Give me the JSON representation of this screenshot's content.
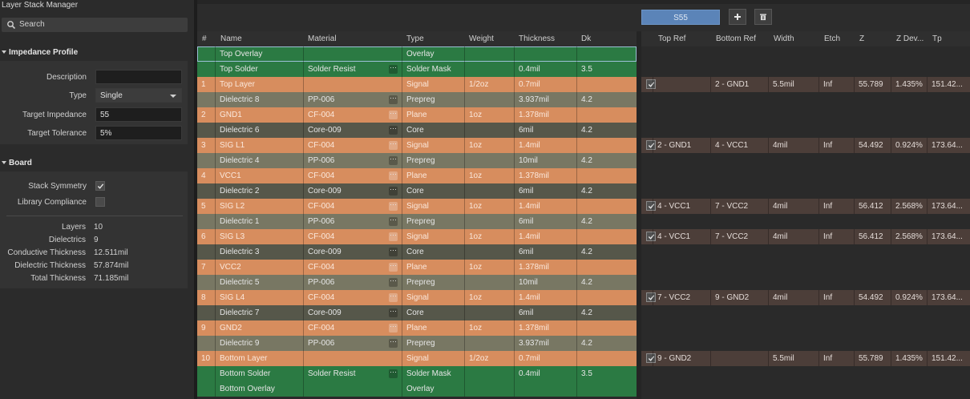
{
  "app": {
    "title": "Layer Stack Manager"
  },
  "search": {
    "placeholder": "Search"
  },
  "impedance_profile": {
    "header": "Impedance Profile",
    "description_label": "Description",
    "description_value": "",
    "type_label": "Type",
    "type_value": "Single",
    "target_impedance_label": "Target Impedance",
    "target_impedance_value": "55",
    "target_tolerance_label": "Target Tolerance",
    "target_tolerance_value": "5%"
  },
  "board": {
    "header": "Board",
    "stack_symmetry_label": "Stack Symmetry",
    "stack_symmetry_checked": true,
    "library_compliance_label": "Library Compliance",
    "library_compliance_checked": false,
    "stats": [
      {
        "label": "Layers",
        "value": "10"
      },
      {
        "label": "Dielectrics",
        "value": "9"
      },
      {
        "label": "Conductive Thickness",
        "value": "12.511mil"
      },
      {
        "label": "Dielectric Thickness",
        "value": "57.874mil"
      },
      {
        "label": "Total Thickness",
        "value": "71.185mil"
      }
    ]
  },
  "toolbar": {
    "impedance_tab": "S55",
    "add_icon": "plus-icon",
    "delete_icon": "trash-icon"
  },
  "colors": {
    "overlay": "#2b7a43",
    "solder": "#2b7a43",
    "signal": "#d78d5e",
    "plane": "#d78d5e",
    "prepreg": "#787763",
    "core": "#56574a",
    "impedance_row": "#4c3e39",
    "accent": "#5b84b8"
  },
  "stack_table": {
    "headers": [
      "#",
      "Name",
      "Material",
      "Type",
      "Weight",
      "Thickness",
      "Dk"
    ],
    "rows": [
      {
        "kind": "overlay",
        "num": "",
        "name": "Top Overlay",
        "material": "",
        "type": "Overlay",
        "weight": "",
        "thickness": "",
        "dk": "",
        "selected": true
      },
      {
        "kind": "solder",
        "num": "",
        "name": "Top Solder",
        "material": "Solder Resist",
        "type": "Solder Mask",
        "weight": "",
        "thickness": "0.4mil",
        "dk": "3.5"
      },
      {
        "kind": "signal",
        "num": "1",
        "name": "Top Layer",
        "material": "",
        "type": "Signal",
        "weight": "1/2oz",
        "thickness": "0.7mil",
        "dk": ""
      },
      {
        "kind": "prepreg",
        "num": "",
        "name": "Dielectric 8",
        "material": "PP-006",
        "type": "Prepreg",
        "weight": "",
        "thickness": "3.937mil",
        "dk": "4.2"
      },
      {
        "kind": "plane",
        "num": "2",
        "name": "GND1",
        "material": "CF-004",
        "type": "Plane",
        "weight": "1oz",
        "thickness": "1.378mil",
        "dk": ""
      },
      {
        "kind": "core",
        "num": "",
        "name": "Dielectric 6",
        "material": "Core-009",
        "type": "Core",
        "weight": "",
        "thickness": "6mil",
        "dk": "4.2"
      },
      {
        "kind": "signal",
        "num": "3",
        "name": "SIG L1",
        "material": "CF-004",
        "type": "Signal",
        "weight": "1oz",
        "thickness": "1.4mil",
        "dk": ""
      },
      {
        "kind": "prepreg",
        "num": "",
        "name": "Dielectric 4",
        "material": "PP-006",
        "type": "Prepreg",
        "weight": "",
        "thickness": "10mil",
        "dk": "4.2"
      },
      {
        "kind": "plane",
        "num": "4",
        "name": "VCC1",
        "material": "CF-004",
        "type": "Plane",
        "weight": "1oz",
        "thickness": "1.378mil",
        "dk": ""
      },
      {
        "kind": "core",
        "num": "",
        "name": "Dielectric 2",
        "material": "Core-009",
        "type": "Core",
        "weight": "",
        "thickness": "6mil",
        "dk": "4.2"
      },
      {
        "kind": "signal",
        "num": "5",
        "name": "SIG L2",
        "material": "CF-004",
        "type": "Signal",
        "weight": "1oz",
        "thickness": "1.4mil",
        "dk": ""
      },
      {
        "kind": "prepreg",
        "num": "",
        "name": "Dielectric 1",
        "material": "PP-006",
        "type": "Prepreg",
        "weight": "",
        "thickness": "6mil",
        "dk": "4.2"
      },
      {
        "kind": "signal",
        "num": "6",
        "name": "SIG L3",
        "material": "CF-004",
        "type": "Signal",
        "weight": "1oz",
        "thickness": "1.4mil",
        "dk": ""
      },
      {
        "kind": "core",
        "num": "",
        "name": "Dielectric 3",
        "material": "Core-009",
        "type": "Core",
        "weight": "",
        "thickness": "6mil",
        "dk": "4.2"
      },
      {
        "kind": "plane",
        "num": "7",
        "name": "VCC2",
        "material": "CF-004",
        "type": "Plane",
        "weight": "1oz",
        "thickness": "1.378mil",
        "dk": ""
      },
      {
        "kind": "prepreg",
        "num": "",
        "name": "Dielectric 5",
        "material": "PP-006",
        "type": "Prepreg",
        "weight": "",
        "thickness": "10mil",
        "dk": "4.2"
      },
      {
        "kind": "signal",
        "num": "8",
        "name": "SIG L4",
        "material": "CF-004",
        "type": "Signal",
        "weight": "1oz",
        "thickness": "1.4mil",
        "dk": ""
      },
      {
        "kind": "core",
        "num": "",
        "name": "Dielectric 7",
        "material": "Core-009",
        "type": "Core",
        "weight": "",
        "thickness": "6mil",
        "dk": "4.2"
      },
      {
        "kind": "plane",
        "num": "9",
        "name": "GND2",
        "material": "CF-004",
        "type": "Plane",
        "weight": "1oz",
        "thickness": "1.378mil",
        "dk": ""
      },
      {
        "kind": "prepreg",
        "num": "",
        "name": "Dielectric 9",
        "material": "PP-006",
        "type": "Prepreg",
        "weight": "",
        "thickness": "3.937mil",
        "dk": "4.2"
      },
      {
        "kind": "signal",
        "num": "10",
        "name": "Bottom Layer",
        "material": "",
        "type": "Signal",
        "weight": "1/2oz",
        "thickness": "0.7mil",
        "dk": ""
      },
      {
        "kind": "solder",
        "num": "",
        "name": "Bottom Solder",
        "material": "Solder Resist",
        "type": "Solder Mask",
        "weight": "",
        "thickness": "0.4mil",
        "dk": "3.5"
      },
      {
        "kind": "overlay",
        "num": "",
        "name": "Bottom Overlay",
        "material": "",
        "type": "Overlay",
        "weight": "",
        "thickness": "",
        "dk": ""
      }
    ]
  },
  "impedance_table": {
    "headers": [
      "",
      "Top Ref",
      "Bottom Ref",
      "Width",
      "Etch",
      "Z",
      "Z Dev...",
      "Tp"
    ],
    "rows": [
      null,
      null,
      {
        "checked": true,
        "top_ref": "",
        "bottom_ref": "2 - GND1",
        "width": "5.5mil",
        "etch": "Inf",
        "z": "55.789",
        "z_dev": "1.435%",
        "tp": "151.42..."
      },
      null,
      null,
      null,
      {
        "checked": true,
        "top_ref": "2 - GND1",
        "bottom_ref": "4 - VCC1",
        "width": "4mil",
        "etch": "Inf",
        "z": "54.492",
        "z_dev": "0.924%",
        "tp": "173.64..."
      },
      null,
      null,
      null,
      {
        "checked": true,
        "top_ref": "4 - VCC1",
        "bottom_ref": "7 - VCC2",
        "width": "4mil",
        "etch": "Inf",
        "z": "56.412",
        "z_dev": "2.568%",
        "tp": "173.64..."
      },
      null,
      {
        "checked": true,
        "top_ref": "4 - VCC1",
        "bottom_ref": "7 - VCC2",
        "width": "4mil",
        "etch": "Inf",
        "z": "56.412",
        "z_dev": "2.568%",
        "tp": "173.64..."
      },
      null,
      null,
      null,
      {
        "checked": true,
        "top_ref": "7 - VCC2",
        "bottom_ref": "9 - GND2",
        "width": "4mil",
        "etch": "Inf",
        "z": "54.492",
        "z_dev": "0.924%",
        "tp": "173.64..."
      },
      null,
      null,
      null,
      {
        "checked": true,
        "top_ref": "9 - GND2",
        "bottom_ref": "",
        "width": "5.5mil",
        "etch": "Inf",
        "z": "55.789",
        "z_dev": "1.435%",
        "tp": "151.42..."
      },
      null,
      null
    ]
  }
}
